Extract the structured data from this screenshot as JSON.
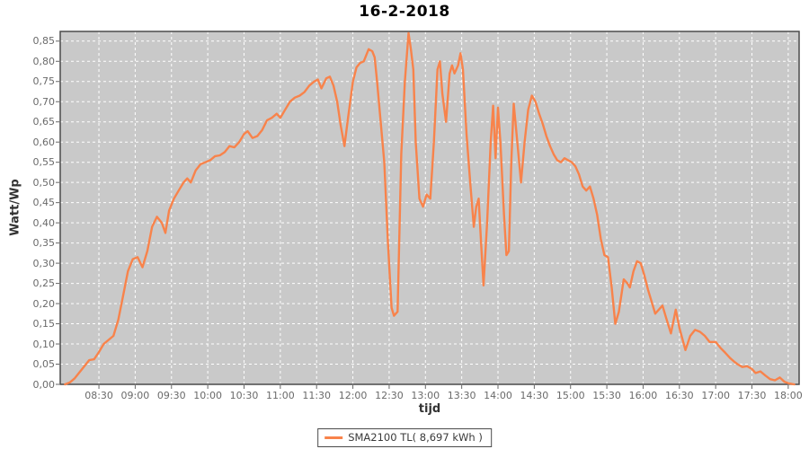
{
  "chart_data": {
    "type": "line",
    "title": "16-2-2018",
    "xlabel": "tijd",
    "ylabel": "Watt/Wp",
    "x_range": [
      "07:58",
      "18:09"
    ],
    "ylim": [
      0,
      0.874
    ],
    "y_tick_step": 0.05,
    "grid": true,
    "grid_style": "white-dashed",
    "legend_position": "bottom-center",
    "x_tick_labels": [
      "08:30",
      "09:00",
      "09:30",
      "10:00",
      "10:30",
      "11:00",
      "11:30",
      "12:00",
      "12:30",
      "13:00",
      "13:30",
      "14:00",
      "14:30",
      "15:00",
      "15:30",
      "16:00",
      "16:30",
      "17:00",
      "17:30",
      "18:00"
    ],
    "y_tick_labels": [
      "0,00",
      "0,05",
      "0,10",
      "0,15",
      "0,20",
      "0,25",
      "0,30",
      "0,35",
      "0,40",
      "0,45",
      "0,50",
      "0,55",
      "0,60",
      "0,65",
      "0,70",
      "0,75",
      "0,80",
      "0,85"
    ],
    "series": [
      {
        "name": "SMA2100 TL( 8,697 kWh )",
        "color": "#f8834b",
        "x": [
          "08:02",
          "08:06",
          "08:10",
          "08:14",
          "08:18",
          "08:22",
          "08:26",
          "08:30",
          "08:34",
          "08:38",
          "08:42",
          "08:46",
          "08:50",
          "08:54",
          "08:58",
          "09:02",
          "09:06",
          "09:10",
          "09:14",
          "09:18",
          "09:22",
          "09:25",
          "09:28",
          "09:32",
          "09:36",
          "09:40",
          "09:43",
          "09:46",
          "09:50",
          "09:54",
          "09:58",
          "10:02",
          "10:06",
          "10:10",
          "10:14",
          "10:18",
          "10:22",
          "10:26",
          "10:30",
          "10:33",
          "10:37",
          "10:41",
          "10:45",
          "10:49",
          "10:53",
          "10:57",
          "11:00",
          "11:04",
          "11:08",
          "11:12",
          "11:16",
          "11:20",
          "11:24",
          "11:28",
          "11:31",
          "11:34",
          "11:38",
          "11:41",
          "11:44",
          "11:47",
          "11:50",
          "11:53",
          "11:56",
          "12:00",
          "12:03",
          "12:06",
          "12:09",
          "12:13",
          "12:16",
          "12:18",
          "12:20",
          "12:23",
          "12:26",
          "12:29",
          "12:32",
          "12:34",
          "12:37",
          "12:40",
          "12:43",
          "12:46",
          "12:48",
          "12:50",
          "12:52",
          "12:55",
          "12:58",
          "13:01",
          "13:04",
          "13:07",
          "13:10",
          "13:12",
          "13:14",
          "13:17",
          "13:20",
          "13:22",
          "13:24",
          "13:27",
          "13:29",
          "13:31",
          "13:34",
          "13:37",
          "13:40",
          "13:42",
          "13:44",
          "13:46",
          "13:48",
          "13:51",
          "13:54",
          "13:56",
          "13:58",
          "14:00",
          "14:02",
          "14:05",
          "14:07",
          "14:09",
          "14:11",
          "14:13",
          "14:16",
          "14:19",
          "14:22",
          "14:25",
          "14:28",
          "14:31",
          "14:34",
          "14:37",
          "14:40",
          "14:43",
          "14:46",
          "14:49",
          "14:52",
          "14:55",
          "14:58",
          "15:01",
          "15:04",
          "15:07",
          "15:10",
          "15:13",
          "15:16",
          "15:19",
          "15:22",
          "15:25",
          "15:28",
          "15:31",
          "15:34",
          "15:37",
          "15:40",
          "15:44",
          "15:47",
          "15:49",
          "15:52",
          "15:55",
          "15:58",
          "16:01",
          "16:04",
          "16:07",
          "16:10",
          "16:13",
          "16:16",
          "16:19",
          "16:23",
          "16:27",
          "16:30",
          "16:35",
          "16:39",
          "16:43",
          "16:47",
          "16:51",
          "16:55",
          "17:00",
          "17:04",
          "17:08",
          "17:12",
          "17:15",
          "17:18",
          "17:22",
          "17:26",
          "17:30",
          "17:33",
          "17:37",
          "17:41",
          "17:45",
          "17:49",
          "17:53",
          "17:57",
          "18:01",
          "18:05"
        ],
        "y": [
          0,
          0.005,
          0.015,
          0.03,
          0.045,
          0.06,
          0.062,
          0.08,
          0.1,
          0.11,
          0.12,
          0.16,
          0.22,
          0.28,
          0.31,
          0.315,
          0.29,
          0.33,
          0.39,
          0.415,
          0.4,
          0.375,
          0.43,
          0.46,
          0.48,
          0.5,
          0.51,
          0.5,
          0.53,
          0.545,
          0.55,
          0.555,
          0.565,
          0.567,
          0.575,
          0.59,
          0.587,
          0.6,
          0.62,
          0.627,
          0.61,
          0.615,
          0.63,
          0.654,
          0.66,
          0.67,
          0.66,
          0.68,
          0.7,
          0.71,
          0.715,
          0.724,
          0.74,
          0.75,
          0.755,
          0.733,
          0.758,
          0.762,
          0.74,
          0.7,
          0.64,
          0.59,
          0.66,
          0.75,
          0.785,
          0.796,
          0.8,
          0.83,
          0.825,
          0.81,
          0.75,
          0.65,
          0.55,
          0.35,
          0.19,
          0.17,
          0.18,
          0.57,
          0.75,
          0.87,
          0.83,
          0.78,
          0.6,
          0.46,
          0.44,
          0.47,
          0.46,
          0.6,
          0.78,
          0.8,
          0.72,
          0.65,
          0.77,
          0.79,
          0.77,
          0.79,
          0.82,
          0.78,
          0.62,
          0.5,
          0.39,
          0.44,
          0.46,
          0.35,
          0.245,
          0.4,
          0.6,
          0.69,
          0.56,
          0.685,
          0.6,
          0.42,
          0.32,
          0.33,
          0.55,
          0.695,
          0.6,
          0.5,
          0.6,
          0.68,
          0.715,
          0.7,
          0.67,
          0.645,
          0.615,
          0.59,
          0.57,
          0.555,
          0.55,
          0.56,
          0.555,
          0.55,
          0.54,
          0.52,
          0.49,
          0.48,
          0.49,
          0.46,
          0.42,
          0.36,
          0.32,
          0.315,
          0.24,
          0.15,
          0.18,
          0.26,
          0.25,
          0.24,
          0.28,
          0.305,
          0.3,
          0.27,
          0.235,
          0.205,
          0.175,
          0.185,
          0.195,
          0.165,
          0.126,
          0.185,
          0.14,
          0.085,
          0.12,
          0.135,
          0.13,
          0.12,
          0.105,
          0.105,
          0.09,
          0.078,
          0.065,
          0.057,
          0.05,
          0.043,
          0.045,
          0.038,
          0.028,
          0.032,
          0.022,
          0.013,
          0.01,
          0.017,
          0.006,
          0.002,
          0.0
        ]
      }
    ],
    "colors": {
      "line": "#f8834b",
      "plot_background": "#c9c9c9",
      "gridline": "#ffffff",
      "plot_border": "#4a4a4a",
      "tick_mark": "#666666",
      "tick_label": "#6a6a6a",
      "axis_title": "#333333",
      "title": "#000000",
      "page_background": "#ffffff"
    }
  }
}
